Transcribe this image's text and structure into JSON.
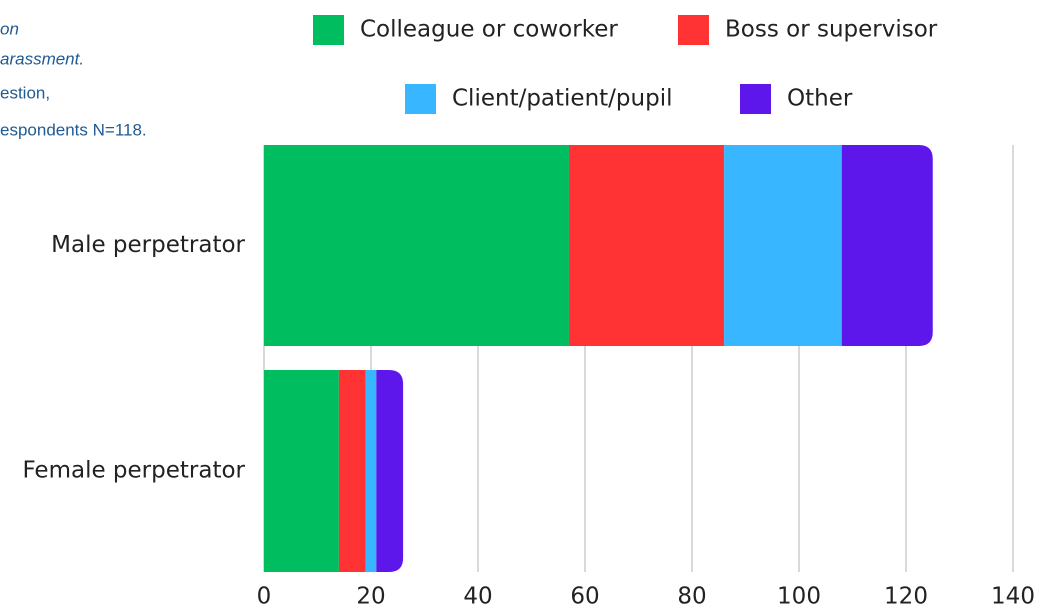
{
  "notes": [
    "on",
    "arassment.",
    "estion,",
    "espondents N=118."
  ],
  "chart_data": {
    "type": "stacked_barh",
    "categories": [
      "Male perpetrator",
      "Female perpetrator"
    ],
    "series": [
      {
        "name": "Colleague or coworker",
        "color": "#00bd5f",
        "values": [
          57,
          14
        ]
      },
      {
        "name": "Boss or supervisor",
        "color": "#ff3333",
        "values": [
          29,
          5
        ]
      },
      {
        "name": "Client/patient/pupil",
        "color": "#38b6ff",
        "values": [
          22,
          2
        ]
      },
      {
        "name": "Other",
        "color": "#5e17eb",
        "values": [
          17,
          5
        ]
      }
    ],
    "xlim": [
      0,
      140
    ],
    "xticks": [
      0,
      20,
      40,
      60,
      80,
      100,
      120,
      140
    ],
    "grid": true,
    "legend": "top"
  }
}
